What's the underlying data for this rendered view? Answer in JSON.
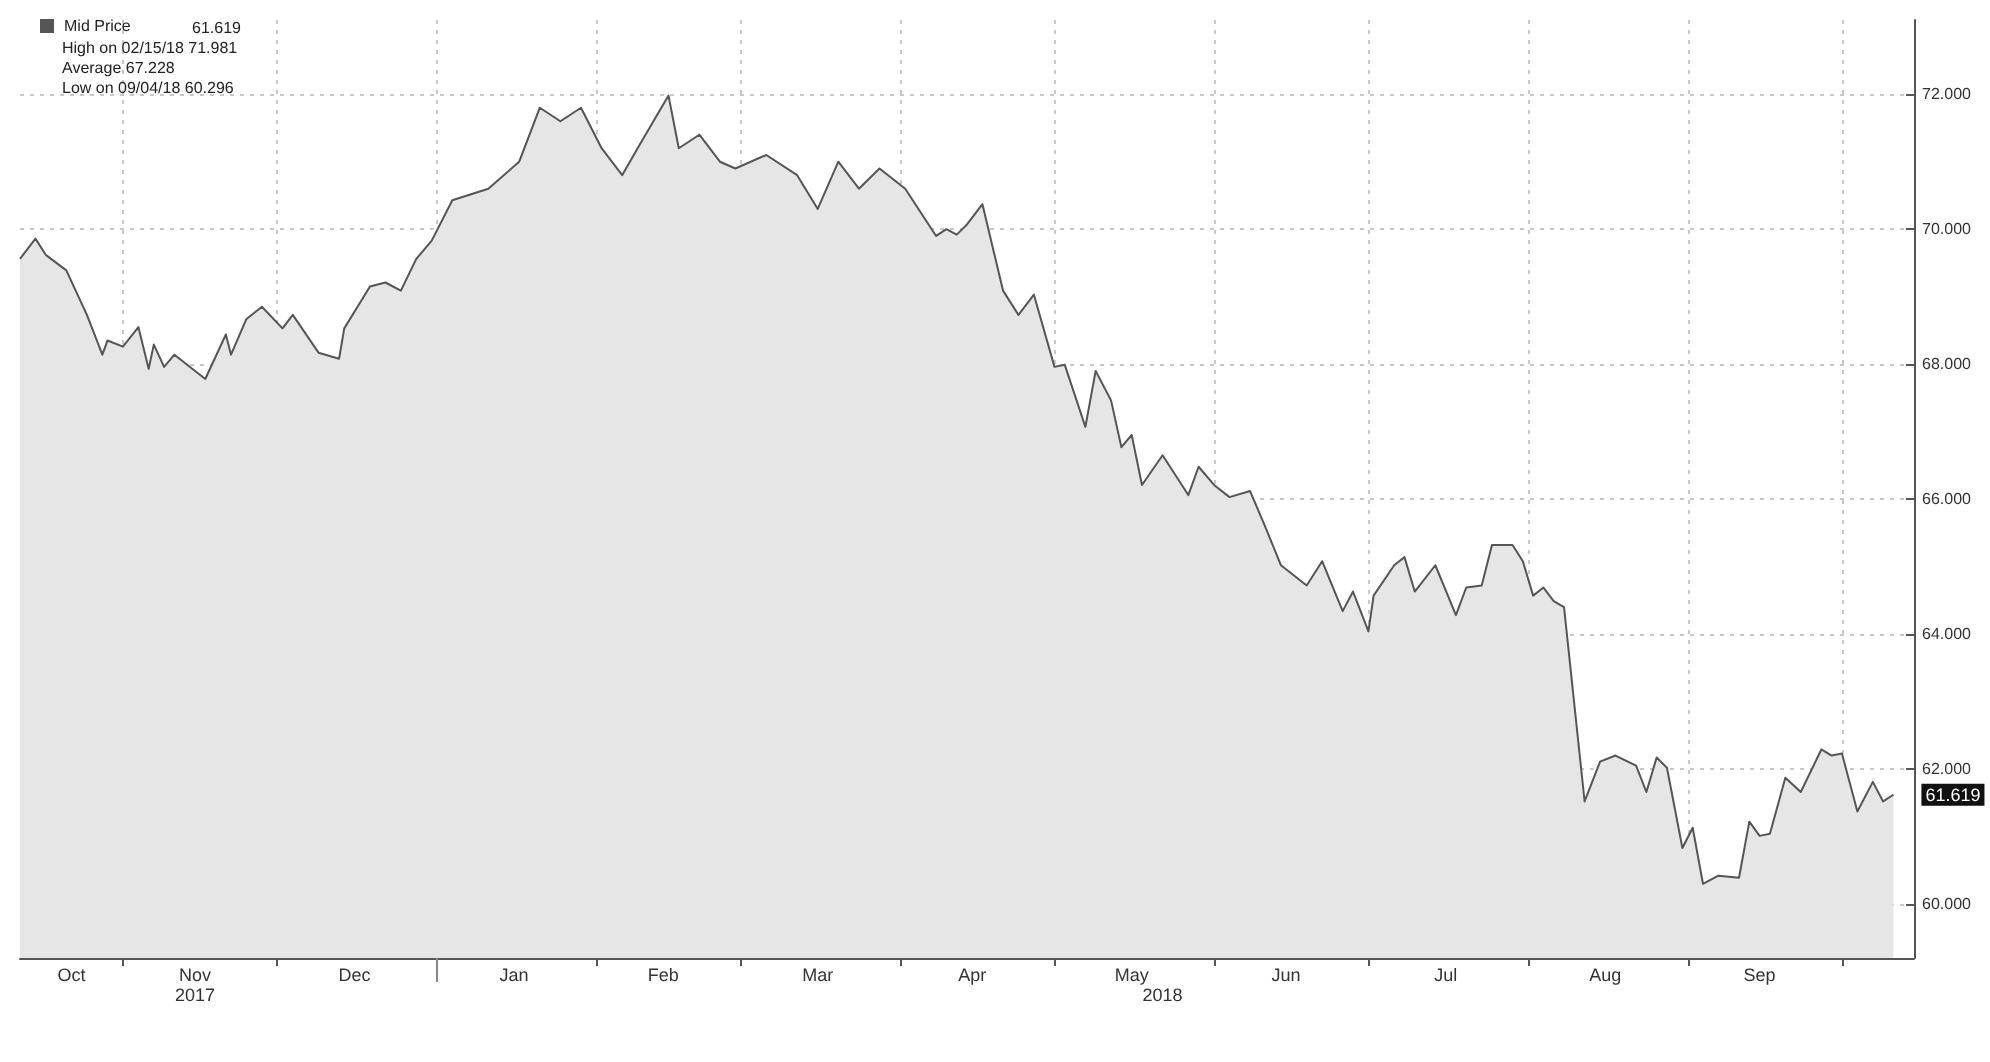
{
  "chart_data": {
    "type": "area",
    "x": [
      "2017-10-12",
      "2017-10-15",
      "2017-10-17",
      "2017-10-21",
      "2017-10-25",
      "2017-10-28",
      "2017-10-29",
      "2017-11-01",
      "2017-11-04",
      "2017-11-06",
      "2017-11-07",
      "2017-11-09",
      "2017-11-11",
      "2017-11-17",
      "2017-11-21",
      "2017-11-22",
      "2017-11-25",
      "2017-11-28",
      "2017-12-02",
      "2017-12-04",
      "2017-12-09",
      "2017-12-13",
      "2017-12-14",
      "2017-12-19",
      "2017-12-22",
      "2017-12-25",
      "2017-12-28",
      "2017-12-31",
      "2018-01-04",
      "2018-01-11",
      "2018-01-17",
      "2018-01-21",
      "2018-01-25",
      "2018-01-29",
      "2018-02-02",
      "2018-02-06",
      "2018-02-09",
      "2018-02-15",
      "2018-02-17",
      "2018-02-21",
      "2018-02-25",
      "2018-02-28",
      "2018-03-06",
      "2018-03-12",
      "2018-03-16",
      "2018-03-20",
      "2018-03-24",
      "2018-03-28",
      "2018-04-02",
      "2018-04-08",
      "2018-04-10",
      "2018-04-12",
      "2018-04-14",
      "2018-04-17",
      "2018-04-21",
      "2018-04-24",
      "2018-04-27",
      "2018-05-01",
      "2018-05-03",
      "2018-05-07",
      "2018-05-09",
      "2018-05-12",
      "2018-05-14",
      "2018-05-16",
      "2018-05-18",
      "2018-05-22",
      "2018-05-27",
      "2018-05-29",
      "2018-06-01",
      "2018-06-04",
      "2018-06-08",
      "2018-06-11",
      "2018-06-14",
      "2018-06-19",
      "2018-06-22",
      "2018-06-26",
      "2018-06-28",
      "2018-07-01",
      "2018-07-02",
      "2018-07-06",
      "2018-07-08",
      "2018-07-10",
      "2018-07-14",
      "2018-07-18",
      "2018-07-20",
      "2018-07-23",
      "2018-07-25",
      "2018-07-29",
      "2018-07-31",
      "2018-08-02",
      "2018-08-04",
      "2018-08-06",
      "2018-08-08",
      "2018-08-12",
      "2018-08-15",
      "2018-08-18",
      "2018-08-22",
      "2018-08-24",
      "2018-08-26",
      "2018-08-28",
      "2018-08-31",
      "2018-09-02",
      "2018-09-04",
      "2018-09-07",
      "2018-09-11",
      "2018-09-13",
      "2018-09-15",
      "2018-09-17",
      "2018-09-20",
      "2018-09-23",
      "2018-09-27",
      "2018-09-29",
      "2018-10-01",
      "2018-10-04",
      "2018-10-07",
      "2018-10-09",
      "2018-10-11"
    ],
    "series": [
      {
        "name": "Mid Price",
        "color": "#555555",
        "values": [
          69.56,
          69.86,
          69.62,
          69.39,
          68.73,
          68.14,
          68.35,
          68.26,
          68.55,
          67.93,
          68.29,
          67.96,
          68.14,
          67.78,
          68.44,
          68.14,
          68.67,
          68.85,
          68.53,
          68.73,
          68.17,
          68.08,
          68.53,
          69.15,
          69.21,
          69.09,
          69.56,
          69.83,
          70.43,
          70.6,
          71.0,
          71.8,
          71.6,
          71.8,
          71.2,
          70.8,
          71.2,
          71.98,
          71.2,
          71.4,
          71.0,
          70.9,
          71.1,
          70.8,
          70.3,
          71.0,
          70.6,
          70.9,
          70.6,
          69.9,
          70.0,
          69.92,
          70.07,
          70.37,
          69.09,
          68.73,
          69.03,
          67.96,
          67.99,
          67.07,
          67.9,
          67.46,
          66.77,
          66.95,
          66.21,
          66.65,
          66.06,
          66.48,
          66.21,
          66.03,
          66.12,
          65.58,
          65.02,
          64.72,
          65.08,
          64.34,
          64.63,
          64.04,
          64.57,
          65.02,
          65.14,
          64.63,
          65.02,
          64.28,
          64.69,
          64.72,
          65.32,
          65.32,
          65.08,
          64.57,
          64.69,
          64.49,
          64.4,
          61.52,
          62.11,
          62.2,
          62.05,
          61.66,
          62.17,
          62.02,
          60.83,
          61.13,
          60.3,
          60.42,
          60.39,
          61.22,
          61.01,
          61.04,
          61.87,
          61.66,
          62.29,
          62.2,
          62.23,
          61.37,
          61.81,
          61.52,
          61.619
        ],
        "value_labels": [
          null,
          null,
          null,
          null,
          null,
          null,
          null,
          null,
          null,
          null,
          null,
          null,
          null,
          null,
          null,
          null,
          null,
          null,
          null,
          null,
          null,
          null,
          null,
          null,
          null,
          null,
          null,
          null,
          null,
          null,
          null,
          null,
          null,
          null,
          null,
          null,
          null,
          null,
          null,
          null,
          null,
          null,
          null,
          null,
          null,
          null,
          null,
          null,
          null,
          null,
          null,
          null,
          null,
          null,
          null,
          null,
          null,
          null,
          null,
          null,
          null,
          null,
          null,
          null,
          null,
          null,
          null,
          null,
          null,
          null,
          null,
          null,
          null,
          null,
          null,
          null,
          null,
          null,
          null,
          null,
          null,
          null,
          null,
          null,
          null,
          null,
          null,
          null,
          null,
          null,
          null,
          null,
          null,
          null,
          null,
          null,
          null,
          null,
          null,
          null,
          null,
          null,
          null,
          null,
          null,
          null,
          null,
          null,
          null,
          null,
          null,
          null,
          null,
          null,
          null,
          null,
          "61.619"
        ]
      }
    ],
    "xlim": [
      "2017-10-12",
      "2018-10-15"
    ],
    "xticks": [
      {
        "value": "2017-10-22",
        "label": "Oct"
      },
      {
        "value": "2017-11-01",
        "label": null
      },
      {
        "value": "2017-11-15",
        "label": "Nov"
      },
      {
        "value": "2017-12-01",
        "label": null
      },
      {
        "value": "2017-12-16",
        "label": "Dec"
      },
      {
        "value": "2018-01-01",
        "label": null
      },
      {
        "value": "2018-01-16",
        "label": "Jan"
      },
      {
        "value": "2018-02-01",
        "label": null
      },
      {
        "value": "2018-02-14",
        "label": "Feb"
      },
      {
        "value": "2018-03-01",
        "label": null
      },
      {
        "value": "2018-03-16",
        "label": "Mar"
      },
      {
        "value": "2018-04-01",
        "label": null
      },
      {
        "value": "2018-04-15",
        "label": "Apr"
      },
      {
        "value": "2018-05-01",
        "label": null
      },
      {
        "value": "2018-05-16",
        "label": "May"
      },
      {
        "value": "2018-06-01",
        "label": null
      },
      {
        "value": "2018-06-15",
        "label": "Jun"
      },
      {
        "value": "2018-07-01",
        "label": null
      },
      {
        "value": "2018-07-16",
        "label": "Jul"
      },
      {
        "value": "2018-08-01",
        "label": null
      },
      {
        "value": "2018-08-16",
        "label": "Aug"
      },
      {
        "value": "2018-09-01",
        "label": null
      },
      {
        "value": "2018-09-15",
        "label": "Sep"
      },
      {
        "value": "2018-10-01",
        "label": null
      }
    ],
    "x2lim": [
      "2017-10-12",
      "2018-10-15"
    ],
    "x2ticks": [
      {
        "value": "2017-11-15",
        "label": "2017"
      },
      {
        "value": "2018-01-01",
        "label": null
      },
      {
        "value": "2018-05-22",
        "label": "2018"
      }
    ],
    "ylim": [
      59.2,
      73.1
    ],
    "yticks": [
      {
        "value": 60,
        "label": "60.000"
      },
      {
        "value": 62,
        "label": "62.000"
      },
      {
        "value": 64,
        "label": "64.000"
      },
      {
        "value": 66,
        "label": "66.000"
      },
      {
        "value": 68,
        "label": "68.000"
      },
      {
        "value": 70,
        "label": "70.000"
      },
      {
        "value": 72,
        "label": "72.000"
      }
    ],
    "grid": true,
    "legend": "top left",
    "annotations": [
      "High on 02/15/18 71.981",
      "Average 67.228",
      "Low on 09/04/18 60.296"
    ]
  }
}
